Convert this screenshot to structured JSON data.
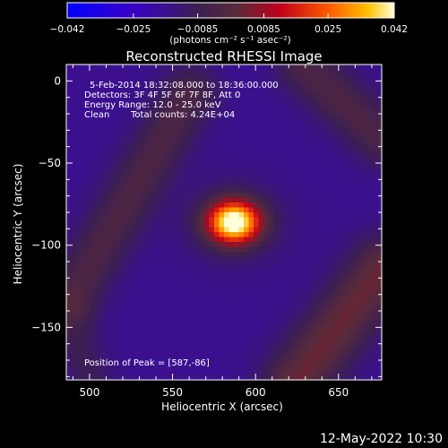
{
  "chart_data": {
    "type": "heatmap",
    "title": "Reconstructed RHESSI Image",
    "xlabel": "Heliocentric X (arcsec)",
    "ylabel": "Heliocentric Y (arcsec)",
    "xlim": [
      486,
      676
    ],
    "ylim": [
      -182,
      10
    ],
    "x_ticks": [
      500,
      550,
      600,
      650
    ],
    "y_ticks": [
      0,
      -50,
      -100,
      -150
    ],
    "colorbar": {
      "range": [
        -0.042,
        0.042
      ],
      "tick_values": [
        -0.042,
        -0.025,
        -0.0085,
        0.0085,
        0.025,
        0.042
      ],
      "tick_labels": [
        "−0.042",
        "−0.025",
        "−0.0085",
        "0.0085",
        "0.025",
        "0.042"
      ],
      "units": "(photons cm⁻² s⁻¹ asec⁻²)"
    },
    "annotations": {
      "time": "5-Feb-2014 18:32:08.000 to 18:36:00.000",
      "detectors": "Detectors: 3F 4F 5F 6F 7F 8F, Att 0",
      "energy": "Energy Range: 12.0 - 25.0 keV",
      "clean": "Clean",
      "counts": "Total counts: 4.24E+04",
      "peak_label": "Position of Peak = [587,-86]"
    },
    "peak": {
      "x": 587,
      "y": -86,
      "value": 0.042
    },
    "features": [
      {
        "type": "source",
        "x": 587,
        "y": -86,
        "sx": 11,
        "sy": 9,
        "amp": 0.058
      },
      {
        "type": "halo",
        "x": 587,
        "y": -86,
        "sx": 22,
        "sy": 18,
        "amp": 0.009
      },
      {
        "type": "band",
        "x1": 490,
        "y1": -130,
        "x2": 560,
        "y2": -8,
        "width": 12,
        "amp": 0.014
      },
      {
        "type": "band",
        "x1": 625,
        "y1": -182,
        "x2": 676,
        "y2": -115,
        "width": 14,
        "amp": 0.02
      },
      {
        "type": "band",
        "x1": 630,
        "y1": 8,
        "x2": 676,
        "y2": -35,
        "width": 12,
        "amp": 0.014
      },
      {
        "type": "band",
        "x1": 488,
        "y1": -145,
        "x2": 500,
        "y2": -182,
        "width": 10,
        "amp": 0.008
      }
    ],
    "background": -0.017
  },
  "footer": {
    "date": "12-May-2022 10:30"
  }
}
